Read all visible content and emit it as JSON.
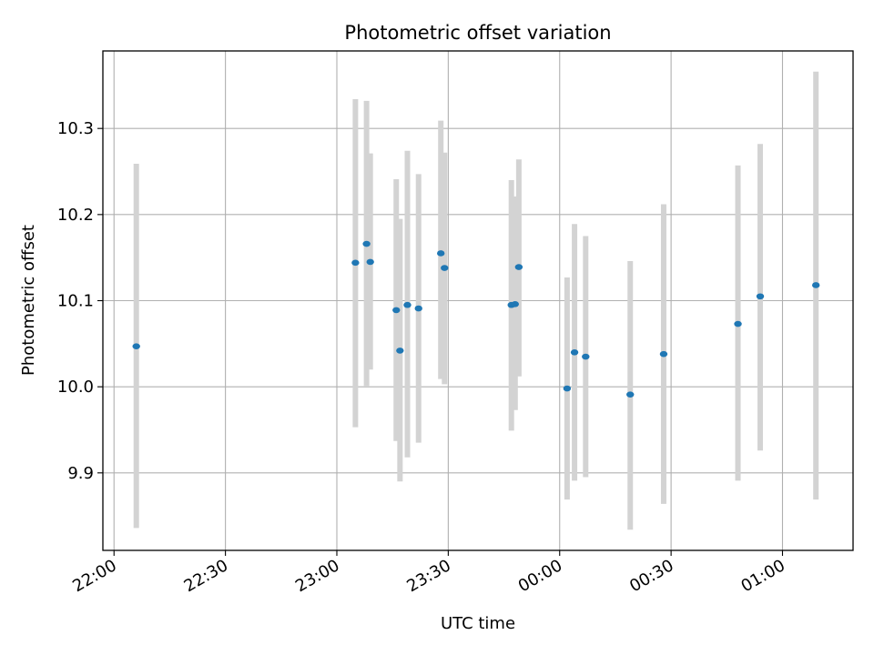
{
  "chart_data": {
    "type": "scatter",
    "title": "Photometric offset variation",
    "xlabel": "UTC time",
    "ylabel": "Photometric offset",
    "x_ticks": [
      "22:00",
      "22:30",
      "23:00",
      "23:30",
      "00:00",
      "00:30",
      "01:00"
    ],
    "y_ticks": [
      "9.9",
      "10.0",
      "10.1",
      "10.2",
      "10.3"
    ],
    "xlim": [
      "21:57",
      "01:19"
    ],
    "ylim": [
      9.81,
      10.39
    ],
    "grid": true,
    "legend": "none",
    "colors": {
      "points": "#1f77b4",
      "error_bars": "#d3d3d3",
      "grid": "#b0b0b0"
    },
    "points": [
      {
        "x": "22:06",
        "y": 10.047,
        "ylo": 9.836,
        "yhi": 10.259
      },
      {
        "x": "23:05",
        "y": 10.144,
        "ylo": 9.953,
        "yhi": 10.334
      },
      {
        "x": "23:08",
        "y": 10.166,
        "ylo": 10.001,
        "yhi": 10.332
      },
      {
        "x": "23:09",
        "y": 10.145,
        "ylo": 10.02,
        "yhi": 10.271
      },
      {
        "x": "23:16",
        "y": 10.089,
        "ylo": 9.937,
        "yhi": 10.241
      },
      {
        "x": "23:17",
        "y": 10.042,
        "ylo": 9.89,
        "yhi": 10.195
      },
      {
        "x": "23:19",
        "y": 10.095,
        "ylo": 9.918,
        "yhi": 10.274
      },
      {
        "x": "23:22",
        "y": 10.091,
        "ylo": 9.935,
        "yhi": 10.247
      },
      {
        "x": "23:28",
        "y": 10.155,
        "ylo": 10.009,
        "yhi": 10.309
      },
      {
        "x": "23:29",
        "y": 10.138,
        "ylo": 10.003,
        "yhi": 10.272
      },
      {
        "x": "23:47",
        "y": 10.095,
        "ylo": 9.949,
        "yhi": 10.24
      },
      {
        "x": "23:48",
        "y": 10.096,
        "ylo": 9.973,
        "yhi": 10.221
      },
      {
        "x": "23:49",
        "y": 10.139,
        "ylo": 10.012,
        "yhi": 10.264
      },
      {
        "x": "00:02",
        "y": 9.998,
        "ylo": 9.869,
        "yhi": 10.127
      },
      {
        "x": "00:04",
        "y": 10.04,
        "ylo": 9.891,
        "yhi": 10.189
      },
      {
        "x": "00:07",
        "y": 10.035,
        "ylo": 9.895,
        "yhi": 10.175
      },
      {
        "x": "00:19",
        "y": 9.991,
        "ylo": 9.834,
        "yhi": 10.146
      },
      {
        "x": "00:28",
        "y": 10.038,
        "ylo": 9.864,
        "yhi": 10.212
      },
      {
        "x": "00:48",
        "y": 10.073,
        "ylo": 9.891,
        "yhi": 10.257
      },
      {
        "x": "00:54",
        "y": 10.105,
        "ylo": 9.926,
        "yhi": 10.282
      },
      {
        "x": "01:09",
        "y": 10.118,
        "ylo": 9.869,
        "yhi": 10.366
      }
    ]
  }
}
